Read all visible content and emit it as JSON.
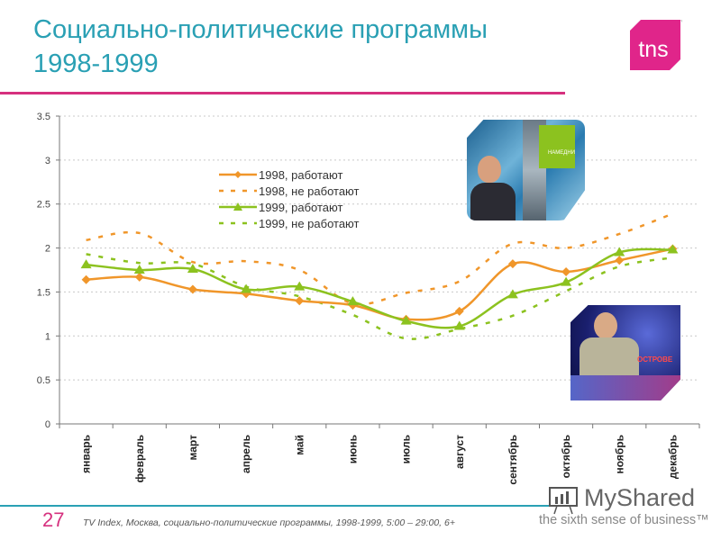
{
  "header": {
    "title_line1": "Социально-политические программы",
    "title_line2": "1998-1999",
    "logo_text": "tns",
    "logo_color": "#e0258a",
    "title_color": "#2aa0b4",
    "accent_rule_color": "#d6307e"
  },
  "footer": {
    "page_number": "27",
    "source": "TV Index, Москва, социально-политические  программы,  1998-1999,  5:00 – 29:00,  6+",
    "watermark_name": "MyShared",
    "watermark_tagline": "the sixth sense of business™"
  },
  "photos": [
    {
      "name": "news-anchor-photo-1",
      "caption": "НАМЕДНИ"
    },
    {
      "name": "news-anchor-photo-2",
      "caption": "ОСТРОВЕ"
    }
  ],
  "chart_data": {
    "type": "line",
    "title": "Социально-политические программы 1998-1999",
    "xlabel": "",
    "ylabel": "",
    "ylim": [
      0,
      3.5
    ],
    "yticks": [
      "0",
      "0.5",
      "1",
      "1.5",
      "2",
      "2.5",
      "3",
      "3.5"
    ],
    "grid": true,
    "legend_position": "upper-center-inside",
    "categories": [
      "январь",
      "февраль",
      "март",
      "апрель",
      "май",
      "июнь",
      "июль",
      "август",
      "сентябрь",
      "октябрь",
      "ноябрь",
      "декабрь"
    ],
    "series": [
      {
        "name": "1998, работают",
        "color": "#f0962a",
        "style": "solid",
        "marker": "diamond",
        "values": [
          1.64,
          1.67,
          1.53,
          1.48,
          1.4,
          1.35,
          1.19,
          1.28,
          1.82,
          1.73,
          1.86,
          1.99
        ]
      },
      {
        "name": "1998, не работают",
        "color": "#f0962a",
        "style": "dashed",
        "marker": "none",
        "values": [
          2.09,
          2.17,
          1.84,
          1.85,
          1.75,
          1.37,
          1.49,
          1.62,
          2.05,
          2.0,
          2.16,
          2.39
        ]
      },
      {
        "name": "1999, работают",
        "color": "#8cc21f",
        "style": "solid",
        "marker": "triangle",
        "values": [
          1.81,
          1.75,
          1.76,
          1.53,
          1.56,
          1.39,
          1.17,
          1.11,
          1.47,
          1.61,
          1.95,
          1.98
        ]
      },
      {
        "name": "1999, не работают",
        "color": "#8cc21f",
        "style": "dashed",
        "marker": "none",
        "values": [
          1.93,
          1.83,
          1.82,
          1.56,
          1.45,
          1.24,
          0.97,
          1.08,
          1.23,
          1.51,
          1.79,
          1.89
        ]
      }
    ]
  }
}
